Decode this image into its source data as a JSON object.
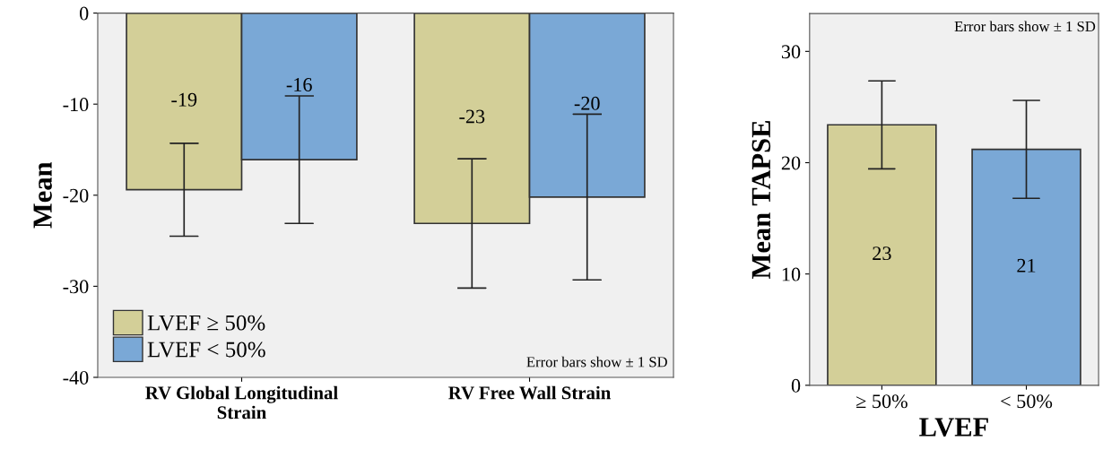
{
  "chart_data": [
    {
      "type": "bar",
      "ylabel": "Mean",
      "categories": [
        "RV Global Longitudinal\nStrain",
        "RV Free Wall Strain"
      ],
      "series": [
        {
          "name": "LVEF ≥ 50%",
          "color": "#d3cf98",
          "values": [
            -19.4,
            -23.1
          ],
          "errors": [
            5.1,
            7.1
          ],
          "value_labels": [
            "-19",
            "-23"
          ]
        },
        {
          "name": "LVEF < 50%",
          "color": "#7aa8d6",
          "values": [
            -16.1,
            -20.2
          ],
          "errors": [
            7.0,
            9.1
          ],
          "value_labels": [
            "-16",
            "-20"
          ]
        }
      ],
      "ylim": [
        -40,
        0
      ],
      "yticks": [
        -40,
        -30,
        -20,
        -10,
        0
      ],
      "legend": "bottom left",
      "grid": false,
      "annotations": [
        "Error bars show ± 1 SD"
      ]
    },
    {
      "type": "bar",
      "xlabel": "LVEF",
      "ylabel": "Mean TAPSE",
      "categories": [
        "≥ 50%",
        "< 50%"
      ],
      "values": [
        23.4,
        21.2
      ],
      "colors": [
        "#d3cf98",
        "#7aa8d6"
      ],
      "errors": [
        3.95,
        4.4
      ],
      "value_labels": [
        "23",
        "21"
      ],
      "ylim": [
        0,
        33.4
      ],
      "yticks": [
        0,
        10,
        20,
        30
      ],
      "grid": false,
      "annotations": [
        "Error bars show ± 1 SD"
      ]
    }
  ]
}
